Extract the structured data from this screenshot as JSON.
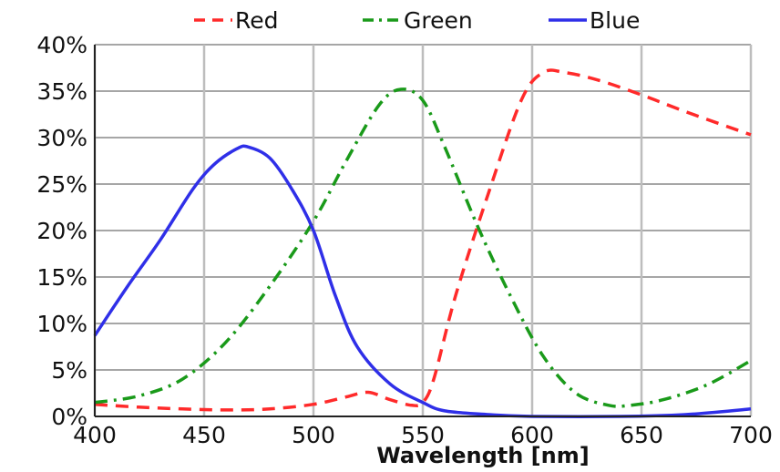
{
  "chart_data": {
    "type": "line",
    "title": "",
    "xlabel": "Wavelength [nm]",
    "ylabel": "",
    "xlim": [
      400,
      700
    ],
    "ylim": [
      0,
      40
    ],
    "x_ticks": [
      "400",
      "450",
      "500",
      "550",
      "600",
      "650",
      "700"
    ],
    "y_ticks": [
      "0%",
      "5%",
      "10%",
      "15%",
      "20%",
      "25%",
      "30%",
      "35%",
      "40%"
    ],
    "grid": true,
    "legend_position": "top",
    "series": [
      {
        "name": "Red",
        "color": "#ff2a2a",
        "dash": "dashed",
        "x": [
          400,
          420,
          440,
          460,
          480,
          500,
          515,
          525,
          535,
          545,
          550,
          555,
          565,
          580,
          595,
          605,
          615,
          630,
          650,
          670,
          700
        ],
        "y": [
          1.3,
          1.0,
          0.8,
          0.7,
          0.8,
          1.3,
          2.1,
          2.6,
          1.8,
          1.2,
          1.5,
          4.0,
          13.0,
          24.0,
          34.0,
          37.0,
          37.0,
          36.2,
          34.6,
          32.8,
          30.3
        ]
      },
      {
        "name": "Green",
        "color": "#1a9a1a",
        "dash": "dash-dot",
        "x": [
          400,
          420,
          440,
          460,
          480,
          500,
          515,
          530,
          540,
          550,
          560,
          575,
          590,
          605,
          620,
          635,
          645,
          660,
          680,
          700
        ],
        "y": [
          1.5,
          2.2,
          4.0,
          8.0,
          14.0,
          21.0,
          27.5,
          33.5,
          35.2,
          34.0,
          29.0,
          20.5,
          13.0,
          6.5,
          2.5,
          1.2,
          1.2,
          1.8,
          3.4,
          6.0
        ]
      },
      {
        "name": "Blue",
        "color": "#2f2fe8",
        "dash": "solid",
        "x": [
          400,
          415,
          430,
          445,
          455,
          465,
          470,
          480,
          490,
          500,
          510,
          520,
          535,
          550,
          560,
          580,
          600,
          640,
          670,
          700
        ],
        "y": [
          8.7,
          14.0,
          19.0,
          24.5,
          27.2,
          28.8,
          29.0,
          27.8,
          24.5,
          20.0,
          13.0,
          7.5,
          3.5,
          1.5,
          0.6,
          0.2,
          0.0,
          0.0,
          0.2,
          0.8
        ]
      }
    ]
  }
}
